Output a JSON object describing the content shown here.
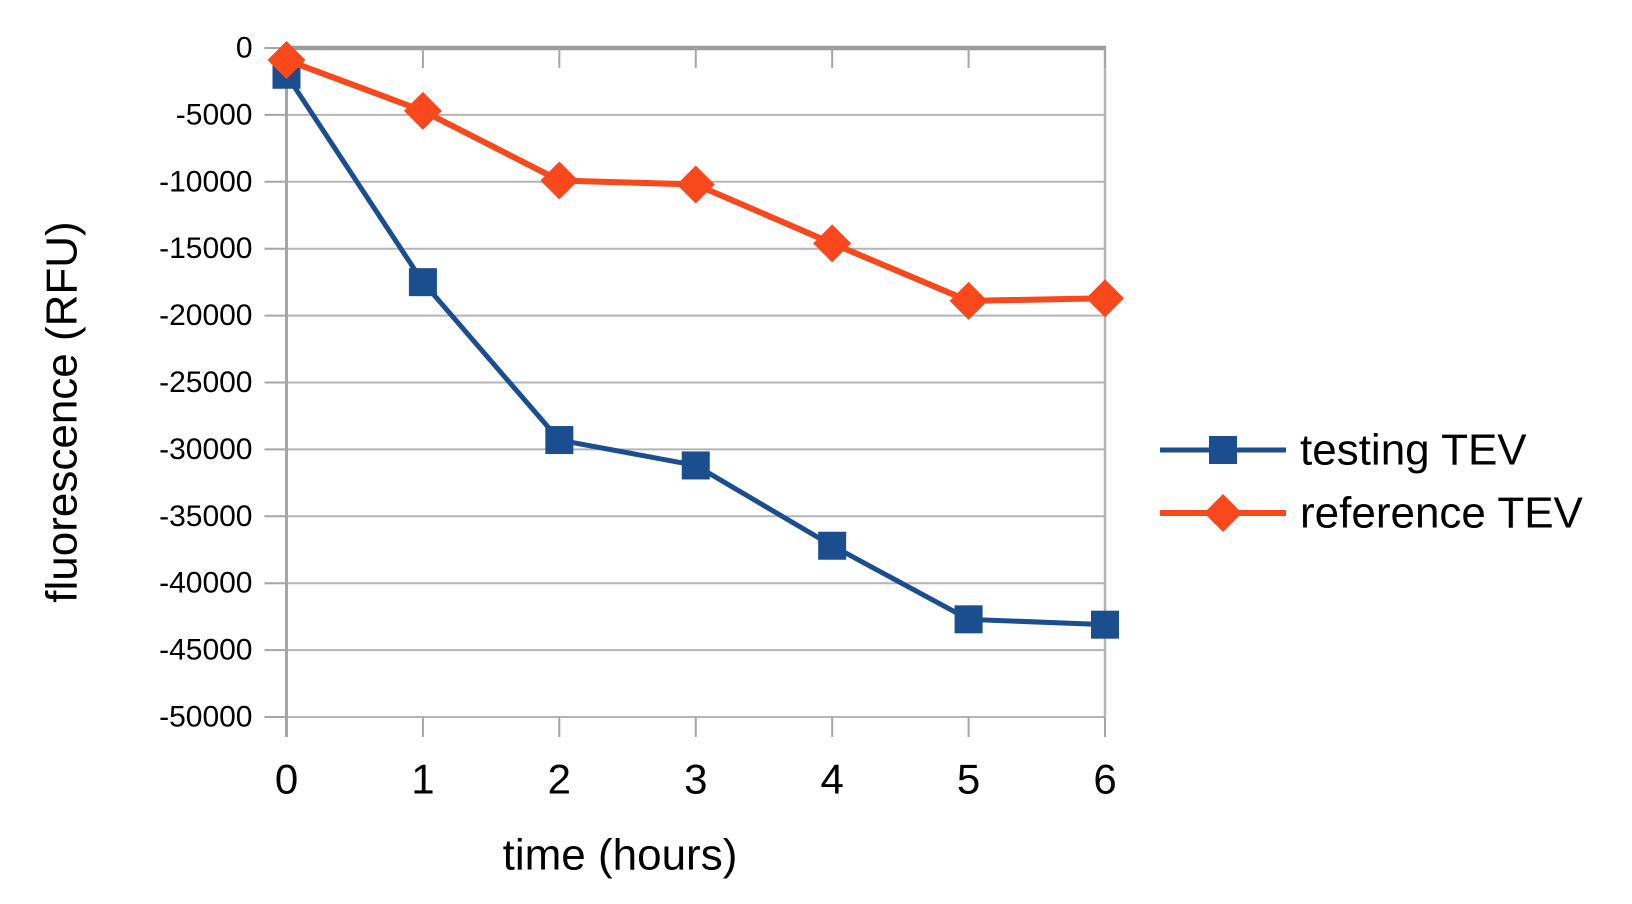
{
  "chart_data": {
    "type": "line",
    "title": "",
    "xlabel": "time (hours)",
    "ylabel": "fluorescence (RFU)",
    "x": [
      0,
      1,
      2,
      3,
      4,
      5,
      6
    ],
    "xtick_labels": [
      "0",
      "1",
      "2",
      "3",
      "4",
      "5",
      "6"
    ],
    "ytick_values": [
      0,
      -5000,
      -10000,
      -15000,
      -20000,
      -25000,
      -30000,
      -35000,
      -40000,
      -45000,
      -50000
    ],
    "ytick_labels": [
      "0",
      "-5000",
      "-10000",
      "-15000",
      "-20000",
      "-25000",
      "-30000",
      "-35000",
      "-40000",
      "-45000",
      "-50000"
    ],
    "ylim": [
      -50000,
      0
    ],
    "xlim": [
      0,
      6
    ],
    "grid": true,
    "legend_position": "right-middle",
    "series": [
      {
        "name": "testing TEV",
        "marker": "square",
        "color": "#1B4E8E",
        "line_width": 5,
        "values": [
          -2000,
          -17500,
          -29300,
          -31200,
          -37200,
          -42700,
          -43100
        ]
      },
      {
        "name": "reference TEV",
        "marker": "diamond",
        "color": "#F8481C",
        "line_width": 6,
        "values": [
          -900,
          -4700,
          -9900,
          -10200,
          -14600,
          -18900,
          -18700
        ]
      }
    ]
  },
  "palette": {
    "background": "#ffffff",
    "gridline": "#b4b4b4",
    "zero_line": "#9b9b9b",
    "axis_line": "#a6a6a6",
    "text": "#000000"
  }
}
